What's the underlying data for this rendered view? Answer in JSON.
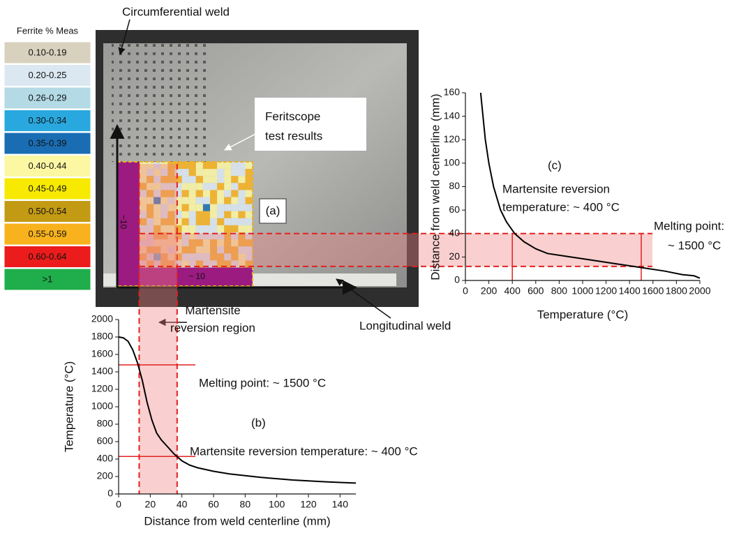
{
  "legend": {
    "title": "Ferrite % Meas",
    "items": [
      {
        "label": "0.10-0.19",
        "color": "#d8d1bd"
      },
      {
        "label": "0.20-0.25",
        "color": "#dbe8f2"
      },
      {
        "label": "0.26-0.29",
        "color": "#b3dae5"
      },
      {
        "label": "0.30-0.34",
        "color": "#29a8df"
      },
      {
        "label": "0.35-0.39",
        "color": "#1a6db3"
      },
      {
        "label": "0.40-0.44",
        "color": "#fbf7a2"
      },
      {
        "label": "0.45-0.49",
        "color": "#f7ea00"
      },
      {
        "label": "0.50-0.54",
        "color": "#c39a14"
      },
      {
        "label": "0.55-0.59",
        "color": "#f7b21d"
      },
      {
        "label": "0.60-0.64",
        "color": "#ec1c1c"
      },
      {
        "label": ">1",
        "color": "#20ad4b"
      }
    ]
  },
  "photo": {
    "annotations": [
      "Circumferential weld",
      "Feritscope",
      "test results",
      "(a)",
      "~10",
      "~ 10",
      "Martensite",
      "reversion region",
      "Longitudinal weld"
    ]
  },
  "chart_data": [
    {
      "type": "line",
      "x_label": "Distance from weld centerline (mm)",
      "y_label": "Temperature (°C)",
      "x": [
        0,
        3,
        6,
        9,
        12,
        15,
        18,
        21,
        24,
        27,
        30,
        35,
        40,
        45,
        50,
        60,
        70,
        80,
        90,
        100,
        110,
        120,
        130,
        140,
        150
      ],
      "values": [
        1800,
        1790,
        1750,
        1650,
        1500,
        1300,
        1050,
        850,
        700,
        620,
        560,
        460,
        380,
        330,
        300,
        260,
        230,
        210,
        190,
        175,
        160,
        150,
        140,
        132,
        125
      ],
      "color": "#000000",
      "xlim": [
        0,
        150
      ],
      "xticks": [
        0,
        20,
        40,
        60,
        80,
        100,
        120,
        140
      ],
      "ylim": [
        0,
        2000
      ],
      "yticks": [
        0,
        200,
        400,
        600,
        800,
        1000,
        1200,
        1400,
        1600,
        1800,
        2000
      ],
      "hlines": [
        1480,
        430
      ],
      "vlines": [
        13,
        37
      ],
      "annotations": [
        "(b)",
        "Melting point: ~ 1500 °C",
        "Martensite reversion temperature: ~ 400 °C"
      ]
    },
    {
      "type": "line",
      "x_label": "Temperature (°C)",
      "y_label": "Distance from weld centerline (mm)",
      "x": [
        130,
        150,
        170,
        200,
        240,
        300,
        350,
        420,
        500,
        600,
        700,
        900,
        1100,
        1300,
        1500,
        1700,
        1850,
        1950,
        2000
      ],
      "values": [
        160,
        140,
        120,
        100,
        80,
        60,
        50,
        40,
        33,
        27,
        23,
        20,
        17,
        14,
        11,
        8,
        5,
        4,
        2
      ],
      "color": "#000000",
      "xlim": [
        0,
        2000
      ],
      "xticks": [
        0,
        200,
        400,
        600,
        800,
        1000,
        1200,
        1400,
        1600,
        1800,
        2000
      ],
      "ylim": [
        0,
        160
      ],
      "yticks": [
        0,
        20,
        40,
        60,
        80,
        100,
        120,
        140,
        160
      ],
      "hlines": [
        40,
        12
      ],
      "vlines": [
        400,
        1500
      ],
      "annotations": [
        "(c)",
        "Martensite reversion",
        "temperature: ~ 400 °C",
        "Melting point:",
        "~ 1500 °C"
      ]
    }
  ]
}
